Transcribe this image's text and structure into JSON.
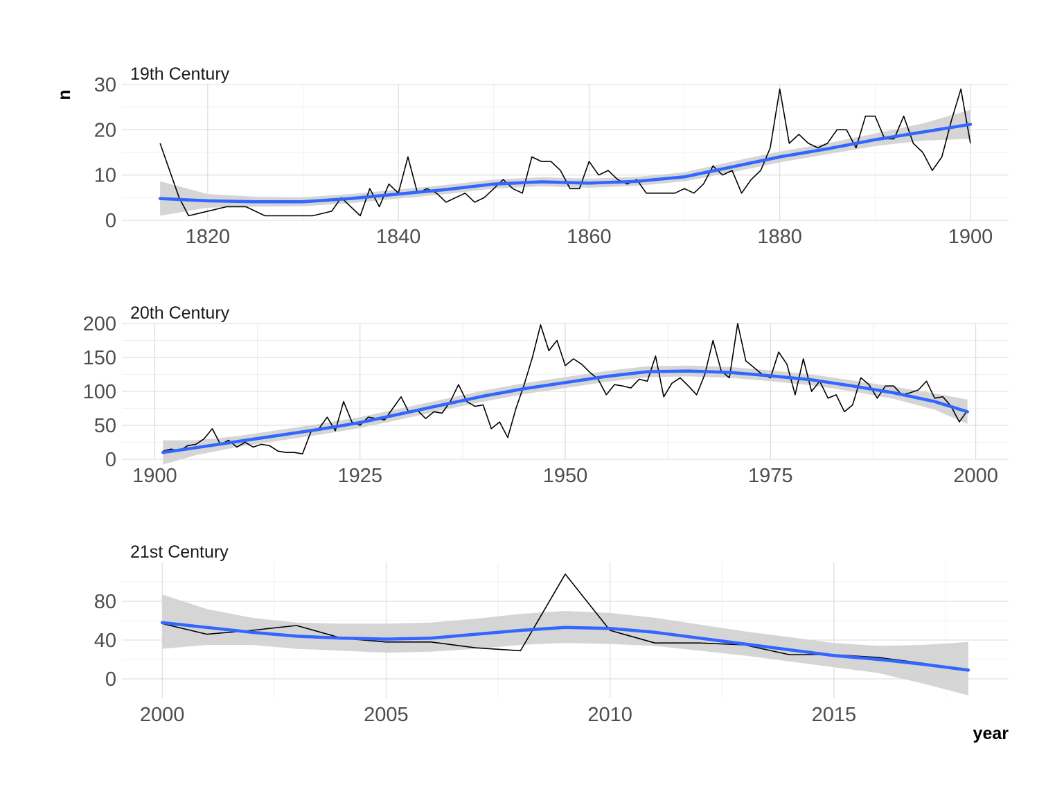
{
  "chart_data": [
    {
      "type": "line",
      "title": "19th Century",
      "ylabel": "n",
      "xlabel": "",
      "xlim": [
        1811,
        1904
      ],
      "ylim": [
        0,
        30
      ],
      "xticks": [
        1820,
        1840,
        1860,
        1880,
        1900
      ],
      "yticks": [
        0,
        10,
        20,
        30
      ],
      "grid": true,
      "x": [
        1815,
        1817,
        1818,
        1819,
        1822,
        1824,
        1826,
        1828,
        1831,
        1833,
        1834,
        1835,
        1836,
        1837,
        1838,
        1839,
        1840,
        1841,
        1842,
        1843,
        1844,
        1845,
        1846,
        1847,
        1848,
        1849,
        1850,
        1851,
        1852,
        1853,
        1854,
        1855,
        1856,
        1857,
        1858,
        1859,
        1860,
        1861,
        1862,
        1863,
        1864,
        1865,
        1866,
        1867,
        1868,
        1869,
        1870,
        1871,
        1872,
        1873,
        1874,
        1875,
        1876,
        1877,
        1878,
        1879,
        1880,
        1881,
        1882,
        1883,
        1884,
        1885,
        1886,
        1887,
        1888,
        1889,
        1890,
        1891,
        1892,
        1893,
        1894,
        1895,
        1896,
        1897,
        1898,
        1899,
        1900
      ],
      "values": [
        17,
        5,
        1,
        1.5,
        3,
        3,
        1,
        1,
        1,
        2,
        5,
        3,
        1,
        7,
        3,
        8,
        6,
        14,
        6,
        7,
        6,
        4,
        5,
        6,
        4,
        5,
        7,
        9,
        7,
        6,
        14,
        13,
        13,
        11,
        7,
        7,
        13,
        10,
        11,
        9,
        8,
        9,
        6,
        6,
        6,
        6,
        7,
        6,
        8,
        12,
        10,
        11,
        6,
        9,
        11,
        16,
        29,
        17,
        19,
        17,
        16,
        17,
        20,
        20,
        16,
        23,
        23,
        18,
        18,
        23,
        17,
        15,
        11,
        14,
        22,
        29,
        17
      ],
      "smooth": [
        {
          "x": 1815,
          "y": 4.8,
          "lo": 1.0,
          "hi": 8.6
        },
        {
          "x": 1820,
          "y": 4.3,
          "lo": 2.8,
          "hi": 5.8
        },
        {
          "x": 1825,
          "y": 4.1,
          "lo": 3.0,
          "hi": 5.2
        },
        {
          "x": 1830,
          "y": 4.1,
          "lo": 3.1,
          "hi": 5.1
        },
        {
          "x": 1835,
          "y": 4.8,
          "lo": 3.8,
          "hi": 5.8
        },
        {
          "x": 1840,
          "y": 5.8,
          "lo": 4.8,
          "hi": 6.8
        },
        {
          "x": 1845,
          "y": 6.8,
          "lo": 5.8,
          "hi": 7.8
        },
        {
          "x": 1850,
          "y": 8.0,
          "lo": 7.0,
          "hi": 9.0
        },
        {
          "x": 1855,
          "y": 8.5,
          "lo": 7.5,
          "hi": 9.5
        },
        {
          "x": 1860,
          "y": 8.2,
          "lo": 7.2,
          "hi": 9.2
        },
        {
          "x": 1865,
          "y": 8.6,
          "lo": 7.6,
          "hi": 9.6
        },
        {
          "x": 1870,
          "y": 9.6,
          "lo": 8.6,
          "hi": 10.6
        },
        {
          "x": 1875,
          "y": 11.8,
          "lo": 10.6,
          "hi": 13.0
        },
        {
          "x": 1880,
          "y": 14.0,
          "lo": 12.8,
          "hi": 15.2
        },
        {
          "x": 1885,
          "y": 15.8,
          "lo": 14.6,
          "hi": 17.0
        },
        {
          "x": 1890,
          "y": 17.8,
          "lo": 16.4,
          "hi": 19.2
        },
        {
          "x": 1895,
          "y": 19.5,
          "lo": 17.6,
          "hi": 21.4
        },
        {
          "x": 1900,
          "y": 21.2,
          "lo": 18.0,
          "hi": 24.4
        }
      ]
    },
    {
      "type": "line",
      "title": "20th Century",
      "xlabel": "",
      "ylabel": "",
      "xlim": [
        1896,
        2004
      ],
      "ylim": [
        0,
        200
      ],
      "xticks": [
        1900,
        1925,
        1950,
        1975,
        2000
      ],
      "yticks": [
        0,
        50,
        100,
        150,
        200
      ],
      "grid": true,
      "x": [
        1901,
        1902,
        1903,
        1904,
        1905,
        1906,
        1907,
        1908,
        1909,
        1910,
        1911,
        1912,
        1913,
        1914,
        1915,
        1916,
        1917,
        1918,
        1919,
        1920,
        1921,
        1922,
        1923,
        1924,
        1925,
        1926,
        1927,
        1928,
        1929,
        1930,
        1931,
        1932,
        1933,
        1934,
        1935,
        1936,
        1937,
        1938,
        1939,
        1940,
        1941,
        1942,
        1943,
        1944,
        1945,
        1946,
        1947,
        1948,
        1949,
        1950,
        1951,
        1952,
        1953,
        1954,
        1955,
        1956,
        1957,
        1958,
        1959,
        1960,
        1961,
        1962,
        1963,
        1964,
        1965,
        1966,
        1967,
        1968,
        1969,
        1970,
        1971,
        1972,
        1973,
        1974,
        1975,
        1976,
        1977,
        1978,
        1979,
        1980,
        1981,
        1982,
        1983,
        1984,
        1985,
        1986,
        1987,
        1988,
        1989,
        1990,
        1991,
        1992,
        1993,
        1994,
        1995,
        1996,
        1997,
        1998,
        1999
      ],
      "values": [
        12,
        15,
        12,
        20,
        22,
        30,
        45,
        22,
        28,
        18,
        25,
        18,
        22,
        20,
        12,
        10,
        10,
        8,
        40,
        45,
        62,
        42,
        85,
        55,
        50,
        62,
        60,
        58,
        75,
        92,
        68,
        72,
        60,
        70,
        68,
        85,
        110,
        85,
        78,
        80,
        45,
        55,
        32,
        75,
        110,
        150,
        198,
        160,
        175,
        138,
        148,
        140,
        128,
        118,
        95,
        110,
        108,
        105,
        118,
        115,
        152,
        92,
        112,
        120,
        108,
        95,
        125,
        175,
        130,
        120,
        200,
        145,
        135,
        125,
        120,
        158,
        140,
        95,
        148,
        100,
        115,
        90,
        95,
        70,
        80,
        120,
        110,
        90,
        108,
        108,
        95,
        98,
        102,
        115,
        90,
        92,
        78,
        55,
        72
      ],
      "smooth": [
        {
          "x": 1901,
          "y": 10,
          "lo": -8,
          "hi": 28
        },
        {
          "x": 1905,
          "y": 17,
          "lo": 6,
          "hi": 28
        },
        {
          "x": 1910,
          "y": 26,
          "lo": 18,
          "hi": 34
        },
        {
          "x": 1915,
          "y": 35,
          "lo": 27,
          "hi": 43
        },
        {
          "x": 1920,
          "y": 44,
          "lo": 36,
          "hi": 52
        },
        {
          "x": 1925,
          "y": 54,
          "lo": 46,
          "hi": 62
        },
        {
          "x": 1930,
          "y": 67,
          "lo": 59,
          "hi": 75
        },
        {
          "x": 1935,
          "y": 80,
          "lo": 72,
          "hi": 88
        },
        {
          "x": 1940,
          "y": 93,
          "lo": 85,
          "hi": 101
        },
        {
          "x": 1945,
          "y": 104,
          "lo": 96,
          "hi": 112
        },
        {
          "x": 1950,
          "y": 113,
          "lo": 105,
          "hi": 121
        },
        {
          "x": 1955,
          "y": 122,
          "lo": 114,
          "hi": 130
        },
        {
          "x": 1960,
          "y": 129,
          "lo": 121,
          "hi": 137
        },
        {
          "x": 1965,
          "y": 130,
          "lo": 122,
          "hi": 138
        },
        {
          "x": 1970,
          "y": 128,
          "lo": 120,
          "hi": 136
        },
        {
          "x": 1975,
          "y": 123,
          "lo": 115,
          "hi": 131
        },
        {
          "x": 1980,
          "y": 117,
          "lo": 109,
          "hi": 125
        },
        {
          "x": 1985,
          "y": 108,
          "lo": 100,
          "hi": 116
        },
        {
          "x": 1990,
          "y": 98,
          "lo": 89,
          "hi": 107
        },
        {
          "x": 1995,
          "y": 85,
          "lo": 73,
          "hi": 97
        },
        {
          "x": 1999,
          "y": 70,
          "lo": 52,
          "hi": 88
        }
      ]
    },
    {
      "type": "line",
      "title": "21st Century",
      "xlabel": "year",
      "ylabel": "",
      "xlim": [
        1999.1,
        2018.9
      ],
      "ylim": [
        -20,
        120
      ],
      "xticks": [
        2000,
        2005,
        2010,
        2015
      ],
      "yticks": [
        0,
        40,
        80
      ],
      "grid": true,
      "x": [
        2000,
        2001,
        2002,
        2003,
        2004,
        2005,
        2006,
        2007,
        2008,
        2009,
        2010,
        2011,
        2012,
        2013,
        2014,
        2015,
        2016,
        2017,
        2018
      ],
      "values": [
        57,
        46,
        50,
        55,
        42,
        38,
        38,
        32,
        29,
        108,
        50,
        37,
        37,
        35,
        25,
        25,
        22,
        16,
        9
      ],
      "smooth": [
        {
          "x": 2000,
          "y": 58,
          "lo": 31,
          "hi": 87
        },
        {
          "x": 2001,
          "y": 53,
          "lo": 35,
          "hi": 72
        },
        {
          "x": 2002,
          "y": 48,
          "lo": 35,
          "hi": 63
        },
        {
          "x": 2003,
          "y": 44,
          "lo": 31,
          "hi": 58
        },
        {
          "x": 2004,
          "y": 42,
          "lo": 29,
          "hi": 57
        },
        {
          "x": 2005,
          "y": 41,
          "lo": 27,
          "hi": 57
        },
        {
          "x": 2006,
          "y": 42,
          "lo": 28,
          "hi": 58
        },
        {
          "x": 2007,
          "y": 46,
          "lo": 31,
          "hi": 62
        },
        {
          "x": 2008,
          "y": 50,
          "lo": 35,
          "hi": 67
        },
        {
          "x": 2009,
          "y": 53,
          "lo": 37,
          "hi": 70
        },
        {
          "x": 2010,
          "y": 52,
          "lo": 36,
          "hi": 68
        },
        {
          "x": 2011,
          "y": 48,
          "lo": 34,
          "hi": 63
        },
        {
          "x": 2012,
          "y": 42,
          "lo": 29,
          "hi": 56
        },
        {
          "x": 2013,
          "y": 36,
          "lo": 24,
          "hi": 49
        },
        {
          "x": 2014,
          "y": 30,
          "lo": 18,
          "hi": 43
        },
        {
          "x": 2015,
          "y": 24,
          "lo": 12,
          "hi": 37
        },
        {
          "x": 2016,
          "y": 20,
          "lo": 6,
          "hi": 34
        },
        {
          "x": 2017,
          "y": 15,
          "lo": -5,
          "hi": 35
        },
        {
          "x": 2018,
          "y": 9,
          "lo": -17,
          "hi": 38
        }
      ]
    }
  ],
  "style": {
    "line_color": "#000000",
    "smooth_color": "#3366ff",
    "band_color": "#d3d3d3",
    "grid_major": "#d9d9d9",
    "grid_minor": "#ebebeb"
  }
}
